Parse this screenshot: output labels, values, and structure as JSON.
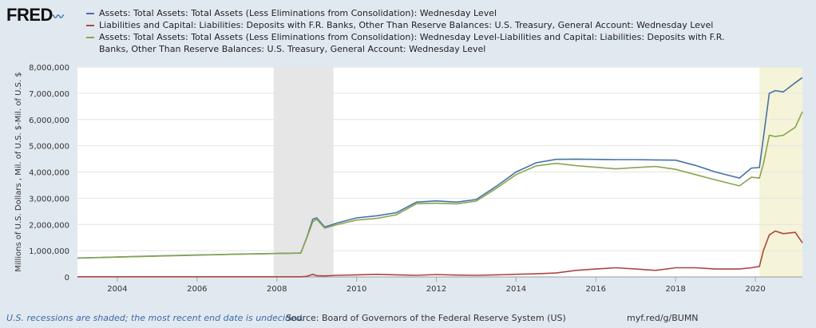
{
  "logo": "FRED",
  "footer": {
    "recession_note": "U.S. recessions are shaded; the most recent end date is undecided.",
    "source": "Source: Board of Governors of the Federal Reserve System (US)",
    "link": "myf.red/g/BUMN"
  },
  "chart_data": {
    "type": "line",
    "ylabel": "Millions of U.S. Dollars , Mil. of U.S. $-Mil. of U.S. $",
    "ylim": [
      0,
      8000000
    ],
    "xlim": [
      2003.0,
      2021.18
    ],
    "yticks": [
      "0",
      "1,000,000",
      "2,000,000",
      "3,000,000",
      "4,000,000",
      "5,000,000",
      "6,000,000",
      "7,000,000",
      "8,000,000"
    ],
    "xticks": [
      "2004",
      "2006",
      "2008",
      "2010",
      "2012",
      "2014",
      "2016",
      "2018",
      "2020"
    ],
    "grid": true,
    "legend": "top",
    "recessions": [
      [
        2007.92,
        2009.42
      ],
      [
        2020.1,
        2021.18
      ]
    ],
    "x": [
      2003,
      2005,
      2007,
      2008.6,
      2008.75,
      2008.9,
      2009,
      2009.2,
      2009.5,
      2010,
      2010.5,
      2011,
      2011.5,
      2012,
      2012.5,
      2013,
      2013.5,
      2014,
      2014.5,
      2015,
      2015.5,
      2016,
      2016.5,
      2017,
      2017.5,
      2018,
      2018.5,
      2019,
      2019.6,
      2019.9,
      2020.1,
      2020.2,
      2020.35,
      2020.5,
      2020.7,
      2021,
      2021.18
    ],
    "series": [
      {
        "name": "Assets: Total Assets: Total Assets (Less Eliminations from Consolidation): Wednesday Level",
        "color": "#4572a7",
        "values": [
          720000,
          800000,
          870000,
          910000,
          1500000,
          2200000,
          2250000,
          1900000,
          2050000,
          2250000,
          2330000,
          2450000,
          2850000,
          2900000,
          2850000,
          2950000,
          3450000,
          4000000,
          4350000,
          4480000,
          4490000,
          4480000,
          4470000,
          4470000,
          4460000,
          4450000,
          4250000,
          4000000,
          3770000,
          4150000,
          4170000,
          5300000,
          7000000,
          7100000,
          7050000,
          7400000,
          7600000
        ]
      },
      {
        "name": "Liabilities and Capital: Liabilities: Deposits with F.R. Banks, Other Than Reserve Balances: U.S. Treasury, General Account: Wednesday Level",
        "color": "#aa4643",
        "values": [
          5000,
          5000,
          5000,
          5000,
          20000,
          100000,
          50000,
          40000,
          60000,
          80000,
          100000,
          80000,
          60000,
          90000,
          70000,
          60000,
          80000,
          100000,
          120000,
          150000,
          250000,
          300000,
          350000,
          300000,
          250000,
          350000,
          350000,
          300000,
          300000,
          350000,
          400000,
          1000000,
          1600000,
          1750000,
          1650000,
          1700000,
          1300000
        ]
      },
      {
        "name": "Assets: Total Assets: Total Assets (Less Eliminations from Consolidation): Wednesday Level-Liabilities and Capital: Liabilities: Deposits with F.R. Banks, Other Than Reserve Balances: U.S. Treasury, General Account: Wednesday Level",
        "color": "#89a54e",
        "values": [
          715000,
          795000,
          865000,
          905000,
          1480000,
          2100000,
          2200000,
          1860000,
          1990000,
          2170000,
          2230000,
          2370000,
          2790000,
          2810000,
          2780000,
          2890000,
          3370000,
          3900000,
          4230000,
          4330000,
          4240000,
          4180000,
          4120000,
          4170000,
          4210000,
          4100000,
          3900000,
          3700000,
          3470000,
          3800000,
          3770000,
          4300000,
          5400000,
          5350000,
          5400000,
          5700000,
          6300000
        ]
      }
    ]
  }
}
